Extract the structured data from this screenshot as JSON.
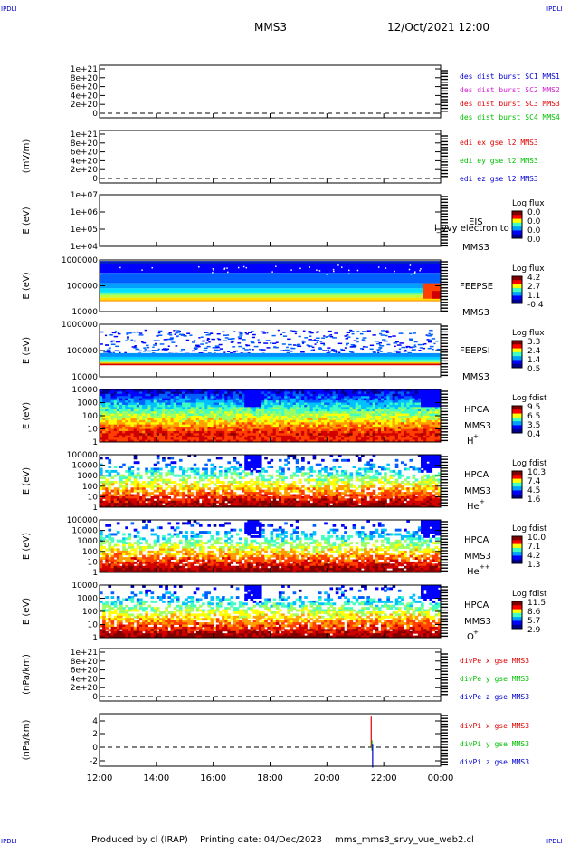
{
  "corner_label": "IPDLI",
  "header": {
    "title": "MMS3",
    "datetime": "12/Oct/2021 12:00"
  },
  "footer": {
    "produced_by": "Produced by cl (IRAP)",
    "printing_date": "Printing date: 04/Dec/2023",
    "filename": "mms_mms3_srvy_vue_web2.cl"
  },
  "colors": {
    "red": "#e00000",
    "magenta": "#d020d0",
    "green": "#00c000",
    "blue": "#0000d0",
    "zero_line": "#000000"
  },
  "chart_data": {
    "type": "multi-panel time series",
    "x_ticks": [
      "12:00",
      "14:00",
      "16:00",
      "18:00",
      "20:00",
      "22:00",
      "00:00"
    ],
    "panels": [
      {
        "id": "density",
        "type": "line",
        "ylabel": "",
        "yticks": [
          "1e+21",
          "8e+20",
          "6e+20",
          "4e+20",
          "2e+20",
          "0"
        ],
        "zero_dashed": true,
        "legend": [
          {
            "label": "des dist burst SC1 MMS1",
            "color": "#0000d0"
          },
          {
            "label": "des dist burst SC2 MMS2",
            "color": "#d020d0"
          },
          {
            "label": "des dist burst SC3 MMS3",
            "color": "#e00000"
          },
          {
            "label": "des dist burst SC4 MMS4",
            "color": "#00c000"
          }
        ]
      },
      {
        "id": "edi",
        "type": "line",
        "ylabel": "(mV/m)",
        "yticks": [
          "1e+21",
          "8e+20",
          "6e+20",
          "4e+20",
          "2e+20",
          "0"
        ],
        "zero_dashed": true,
        "legend": [
          {
            "label": "edi ex gse l2 MMS3",
            "color": "#e00000"
          },
          {
            "label": "edi ey gse l2 MMS3",
            "color": "#00c000"
          },
          {
            "label": "edi ez gse l2 MMS3",
            "color": "#0000d0"
          }
        ]
      },
      {
        "id": "eis",
        "type": "heatmap",
        "ylabel": "E (eV)",
        "yticks": [
          "1e+07",
          "1e+06",
          "1e+05",
          "1e+04"
        ],
        "instrument": [
          "EIS",
          "MMS3"
        ],
        "overlay_text": "l_vvy electron to",
        "colorbar_title": "Log flux",
        "colorbar_ticks": [
          "0.0",
          "0.0",
          "0.0",
          "0.0"
        ]
      },
      {
        "id": "feepse",
        "type": "heatmap",
        "ylabel": "E (eV)",
        "yticks": [
          "1000000",
          "100000",
          "10000"
        ],
        "instrument": [
          "FEEPSE",
          "MMS3"
        ],
        "colorbar_title": "Log flux",
        "colorbar_ticks": [
          "4.2",
          "2.7",
          "1.1",
          "-0.4"
        ]
      },
      {
        "id": "feepsi",
        "type": "heatmap",
        "ylabel": "E (eV)",
        "yticks": [
          "1000000",
          "100000",
          "10000"
        ],
        "instrument": [
          "FEEPSI",
          "MMS3"
        ],
        "colorbar_title": "Log flux",
        "colorbar_ticks": [
          "3.3",
          "2.4",
          "1.4",
          "0.5"
        ]
      },
      {
        "id": "hpca_h",
        "type": "heatmap",
        "ylabel": "E (eV)",
        "yticks": [
          "10000",
          "1000",
          "100",
          "10",
          "1"
        ],
        "instrument": [
          "HPCA",
          "MMS3"
        ],
        "species": "H",
        "charge": "+",
        "colorbar_title": "Log fdist",
        "colorbar_ticks": [
          "9.5",
          "6.5",
          "3.5",
          "0.4"
        ]
      },
      {
        "id": "hpca_he1",
        "type": "heatmap",
        "ylabel": "E (eV)",
        "yticks": [
          "100000",
          "10000",
          "1000",
          "100",
          "10",
          "1"
        ],
        "instrument": [
          "HPCA",
          "MMS3"
        ],
        "species": "He",
        "charge": "+",
        "colorbar_title": "Log fdist",
        "colorbar_ticks": [
          "10.3",
          "7.4",
          "4.5",
          "1.6"
        ]
      },
      {
        "id": "hpca_he2",
        "type": "heatmap",
        "ylabel": "E (eV)",
        "yticks": [
          "100000",
          "10000",
          "1000",
          "100",
          "10",
          "1"
        ],
        "instrument": [
          "HPCA",
          "MMS3"
        ],
        "species": "He",
        "charge": "++",
        "colorbar_title": "Log fdist",
        "colorbar_ticks": [
          "10.0",
          "7.1",
          "4.2",
          "1.3"
        ]
      },
      {
        "id": "hpca_o",
        "type": "heatmap",
        "ylabel": "E (eV)",
        "yticks": [
          "10000",
          "1000",
          "100",
          "10",
          "1"
        ],
        "instrument": [
          "HPCA",
          "MMS3"
        ],
        "species": "O",
        "charge": "+",
        "colorbar_title": "Log fdist",
        "colorbar_ticks": [
          "11.5",
          "8.6",
          "5.7",
          "2.9"
        ]
      },
      {
        "id": "divpe",
        "type": "line",
        "ylabel": "(nPa/km)",
        "yticks": [
          "1e+21",
          "8e+20",
          "6e+20",
          "4e+20",
          "2e+20",
          "0"
        ],
        "zero_dashed": true,
        "legend": [
          {
            "label": "divPe x gse MMS3",
            "color": "#e00000"
          },
          {
            "label": "divPe y gse MMS3",
            "color": "#00c000"
          },
          {
            "label": "divPe z gse MMS3",
            "color": "#0000d0"
          }
        ]
      },
      {
        "id": "divpi",
        "type": "line",
        "ylabel": "(nPa/km)",
        "yticks": [
          "4",
          "2",
          "0",
          "-2"
        ],
        "zero_dashed": true,
        "legend": [
          {
            "label": "divPi x gse MMS3",
            "color": "#e00000"
          },
          {
            "label": "divPi y gse MMS3",
            "color": "#00c000"
          },
          {
            "label": "divPi z gse MMS3",
            "color": "#0000d0"
          }
        ],
        "spike": {
          "time": "21:35",
          "series": [
            {
              "name": "divPi x gse MMS3",
              "min": 0,
              "max": 4.5
            },
            {
              "name": "divPi y gse MMS3",
              "min": -0.5,
              "max": 1.0
            },
            {
              "name": "divPi z gse MMS3",
              "min": -3.0,
              "max": 0.5
            }
          ]
        }
      }
    ]
  }
}
